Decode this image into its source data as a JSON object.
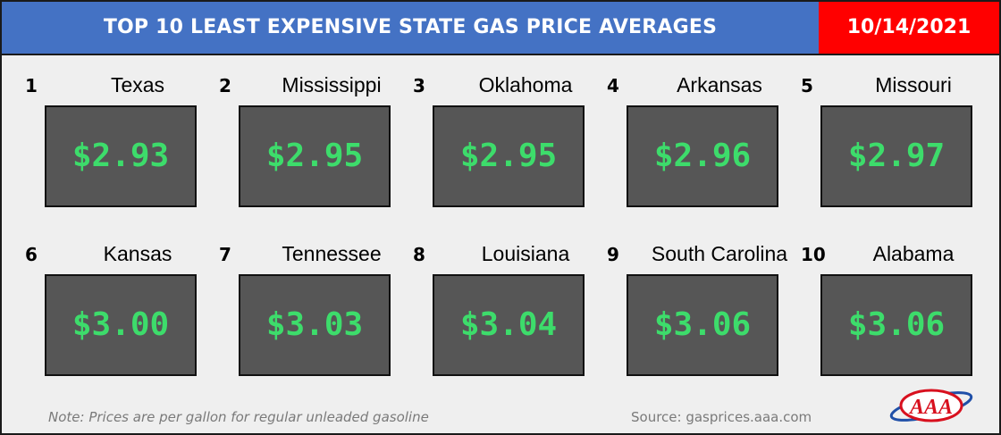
{
  "header": {
    "title": "TOP 10 LEAST EXPENSIVE STATE GAS PRICE AVERAGES",
    "date": "10/14/2021"
  },
  "states": [
    {
      "rank": "1",
      "name": "Texas",
      "price": "$2.93"
    },
    {
      "rank": "2",
      "name": "Mississippi",
      "price": "$2.95"
    },
    {
      "rank": "3",
      "name": "Oklahoma",
      "price": "$2.95"
    },
    {
      "rank": "4",
      "name": "Arkansas",
      "price": "$2.96"
    },
    {
      "rank": "5",
      "name": "Missouri",
      "price": "$2.97"
    },
    {
      "rank": "6",
      "name": "Kansas",
      "price": "$3.00"
    },
    {
      "rank": "7",
      "name": "Tennessee",
      "price": "$3.03"
    },
    {
      "rank": "8",
      "name": "Louisiana",
      "price": "$3.04"
    },
    {
      "rank": "9",
      "name": "South Carolina",
      "price": "$3.06"
    },
    {
      "rank": "10",
      "name": "Alabama",
      "price": "$3.06"
    }
  ],
  "footer": {
    "note": "Note: Prices are per gallon for regular unleaded gasoline",
    "source": "Source: gasprices.aaa.com",
    "logo_text": "AAA"
  },
  "colors": {
    "title_bg": "#4472c4",
    "date_bg": "#ff0000",
    "price_box_bg": "#565656",
    "price_text": "#3ddc6b"
  }
}
